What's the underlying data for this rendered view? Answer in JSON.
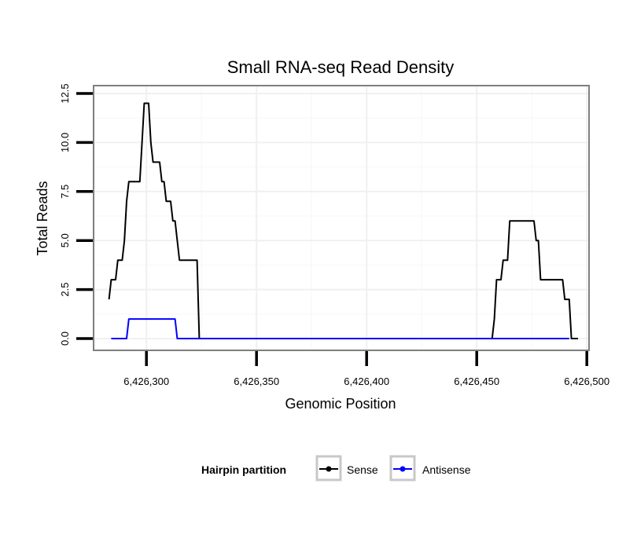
{
  "chart_data": {
    "type": "line",
    "title": "Small RNA-seq Read Density",
    "xlabel": "Genomic Position",
    "ylabel": "Total Reads",
    "xlim": [
      6426276,
      6426501
    ],
    "ylim": [
      -0.6,
      12.9
    ],
    "xticks": [
      6426300,
      6426350,
      6426400,
      6426450,
      6426500
    ],
    "xtick_labels": [
      "6,426,300",
      "6,426,350",
      "6,426,400",
      "6,426,450",
      "6,426,500"
    ],
    "yticks": [
      0,
      2.5,
      5,
      7.5,
      10,
      12.5
    ],
    "ytick_labels": [
      "0.0",
      "2.5",
      "5.0",
      "7.5",
      "10.0",
      "12.5"
    ],
    "grid": true,
    "legend": {
      "title": "Hairpin partition",
      "position": "bottom",
      "entries": [
        "Sense",
        "Antisense"
      ]
    },
    "series": [
      {
        "name": "Sense",
        "color": "#000000",
        "x": [
          6426283,
          6426284,
          6426285,
          6426286,
          6426287,
          6426288,
          6426289,
          6426290,
          6426291,
          6426292,
          6426293,
          6426294,
          6426295,
          6426296,
          6426297,
          6426298,
          6426299,
          6426300,
          6426301,
          6426302,
          6426303,
          6426304,
          6426305,
          6426306,
          6426307,
          6426308,
          6426309,
          6426310,
          6426311,
          6426312,
          6426313,
          6426314,
          6426315,
          6426316,
          6426317,
          6426318,
          6426319,
          6426320,
          6426321,
          6426322,
          6426323,
          6426324,
          6426350,
          6426400,
          6426450,
          6426457,
          6426458,
          6426459,
          6426460,
          6426461,
          6426462,
          6426463,
          6426464,
          6426465,
          6426466,
          6426467,
          6426468,
          6426469,
          6426470,
          6426471,
          6426472,
          6426473,
          6426474,
          6426475,
          6426476,
          6426477,
          6426478,
          6426479,
          6426480,
          6426481,
          6426482,
          6426483,
          6426484,
          6426485,
          6426486,
          6426487,
          6426488,
          6426489,
          6426490,
          6426491,
          6426492,
          6426493,
          6426494,
          6426495,
          6426496
        ],
        "y": [
          2,
          3,
          3,
          3,
          4,
          4,
          4,
          5,
          7,
          8,
          8,
          8,
          8,
          8,
          8,
          10,
          12,
          12,
          12,
          10,
          9,
          9,
          9,
          9,
          8,
          8,
          7,
          7,
          7,
          6,
          6,
          5,
          4,
          4,
          4,
          4,
          4,
          4,
          4,
          4,
          4,
          0,
          0,
          0,
          0,
          0,
          1,
          3,
          3,
          3,
          4,
          4,
          4,
          6,
          6,
          6,
          6,
          6,
          6,
          6,
          6,
          6,
          6,
          6,
          6,
          5,
          5,
          3,
          3,
          3,
          3,
          3,
          3,
          3,
          3,
          3,
          3,
          3,
          2,
          2,
          2,
          0,
          0,
          0,
          0
        ]
      },
      {
        "name": "Antisense",
        "color": "#0000ff",
        "x": [
          6426284,
          6426291,
          6426292,
          6426313,
          6426314,
          6426320,
          6426350,
          6426400,
          6426450,
          6426492
        ],
        "y": [
          0,
          0,
          1,
          1,
          0,
          0,
          0,
          0,
          0,
          0
        ]
      }
    ]
  }
}
